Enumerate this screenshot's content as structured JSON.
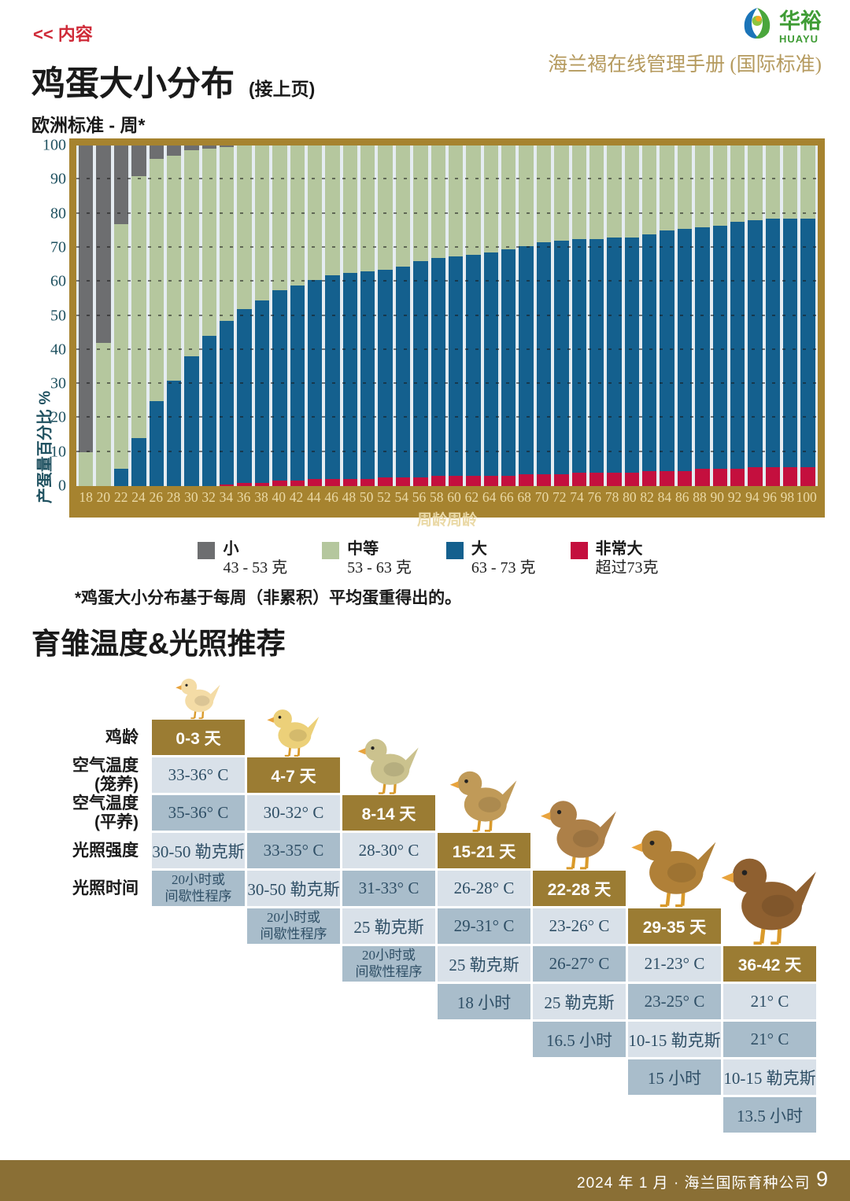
{
  "page": {
    "back_link": "<< 内容",
    "manual_title": "海兰褐在线管理手册 (国际标准)",
    "logo_cn": "华裕",
    "logo_en": "HUAYU",
    "footer": {
      "text": "2024 年 1 月 · 海兰国际育种公司",
      "page_number": "9"
    }
  },
  "egg_section": {
    "title": "鸡蛋大小分布",
    "title_suffix": "(接上页)",
    "subtitle": "欧洲标准 - 周*",
    "footnote": "*鸡蛋大小分布基于每周（非累积）平均蛋重得出的。"
  },
  "chart_data": {
    "type": "bar",
    "stacked": true,
    "percent_stacked": true,
    "xlabel": "周龄周龄",
    "ylabel": "产蛋量百分比 %",
    "ylim": [
      0,
      100
    ],
    "y_ticks": [
      0,
      10,
      20,
      30,
      40,
      50,
      60,
      70,
      80,
      90,
      100
    ],
    "grid": "dashed horizontal",
    "legend_position": "bottom",
    "categories": [
      18,
      20,
      22,
      24,
      26,
      28,
      30,
      32,
      34,
      36,
      38,
      40,
      42,
      44,
      46,
      48,
      50,
      52,
      54,
      56,
      58,
      60,
      62,
      64,
      66,
      68,
      70,
      72,
      74,
      76,
      78,
      80,
      82,
      84,
      86,
      88,
      90,
      92,
      94,
      96,
      98,
      100
    ],
    "series": [
      {
        "name": "小",
        "range": "43 - 53 克",
        "color": "#6d6e70",
        "values": [
          90,
          58,
          23,
          9,
          4,
          3,
          1.5,
          1,
          0.5,
          0,
          0,
          0,
          0,
          0,
          0,
          0,
          0,
          0,
          0,
          0,
          0,
          0,
          0,
          0,
          0,
          0,
          0,
          0,
          0,
          0,
          0,
          0,
          0,
          0,
          0,
          0,
          0,
          0,
          0,
          0,
          0,
          0
        ]
      },
      {
        "name": "中等",
        "range": "53 - 63 克",
        "color": "#b5c79e",
        "values": [
          10,
          42,
          72,
          77,
          71,
          66,
          60.5,
          55,
          51,
          48,
          45.5,
          42.5,
          41,
          39.5,
          38,
          37.5,
          37,
          36.5,
          35.5,
          34,
          33,
          32.5,
          32,
          31.5,
          30.5,
          29.5,
          28.5,
          28,
          27.5,
          27.5,
          27,
          27,
          26,
          25,
          24.5,
          24,
          23.5,
          22.5,
          22,
          21.5,
          21.5,
          21.5
        ]
      },
      {
        "name": "大",
        "range": "63 - 73 克",
        "color": "#14608e",
        "values": [
          0,
          0,
          5,
          14,
          25,
          31,
          38,
          44,
          48,
          51,
          53.5,
          56,
          57.5,
          58.5,
          60,
          60.5,
          61,
          61,
          62,
          63.5,
          64,
          64.5,
          65,
          65.5,
          66.5,
          67,
          68,
          68.5,
          68.5,
          68.5,
          69,
          69,
          69.5,
          70.5,
          71,
          71,
          71.5,
          72.5,
          72.5,
          73,
          73,
          73
        ]
      },
      {
        "name": "非常大",
        "range": "超过73克",
        "color": "#c40f3e",
        "values": [
          0,
          0,
          0,
          0,
          0,
          0,
          0,
          0,
          0.5,
          1,
          1,
          1.5,
          1.5,
          2,
          2,
          2,
          2,
          2.5,
          2.5,
          2.5,
          3,
          3,
          3,
          3,
          3,
          3.5,
          3.5,
          3.5,
          4,
          4,
          4,
          4,
          4.5,
          4.5,
          4.5,
          5,
          5,
          5,
          5.5,
          5.5,
          5.5,
          5.5
        ]
      }
    ]
  },
  "brooding": {
    "title": "育雏温度&光照推荐",
    "row_labels": [
      "鸡龄",
      "空气温度\n(笼养)",
      "空气温度\n(平养)",
      "光照强度",
      "光照时间"
    ],
    "columns": [
      {
        "age": "0-3 天",
        "cage_temp": "33-36° C",
        "floor_temp": "35-36° C",
        "light_intensity": "30-50 勒克斯",
        "light_hours": "20小时或\n间歇性程序",
        "chick_color": "#f4dca6"
      },
      {
        "age": "4-7 天",
        "cage_temp": "30-32° C",
        "floor_temp": "33-35° C",
        "light_intensity": "30-50 勒克斯",
        "light_hours": "20小时或\n间歇性程序",
        "chick_color": "#ecd079"
      },
      {
        "age": "8-14 天",
        "cage_temp": "28-30° C",
        "floor_temp": "31-33° C",
        "light_intensity": "25 勒克斯",
        "light_hours": "20小时或\n间歇性程序",
        "chick_color": "#cbc28e"
      },
      {
        "age": "15-21 天",
        "cage_temp": "26-28° C",
        "floor_temp": "29-31° C",
        "light_intensity": "25 勒克斯",
        "light_hours": "18 小时",
        "chick_color": "#c09a58"
      },
      {
        "age": "22-28 天",
        "cage_temp": "23-26° C",
        "floor_temp": "26-27° C",
        "light_intensity": "25 勒克斯",
        "light_hours": "16.5 小时",
        "chick_color": "#ad8048"
      },
      {
        "age": "29-35 天",
        "cage_temp": "21-23° C",
        "floor_temp": "23-25° C",
        "light_intensity": "10-15 勒克斯",
        "light_hours": "15 小时",
        "chick_color": "#b08038"
      },
      {
        "age": "36-42 天",
        "cage_temp": "21° C",
        "floor_temp": "21° C",
        "light_intensity": "10-15 勒克斯",
        "light_hours": "13.5 小时",
        "chick_color": "#8f6030"
      }
    ],
    "colors": {
      "header": "#9b7c33",
      "cell_light": "#d9e1e9",
      "cell_dark": "#a9bdcb"
    }
  }
}
